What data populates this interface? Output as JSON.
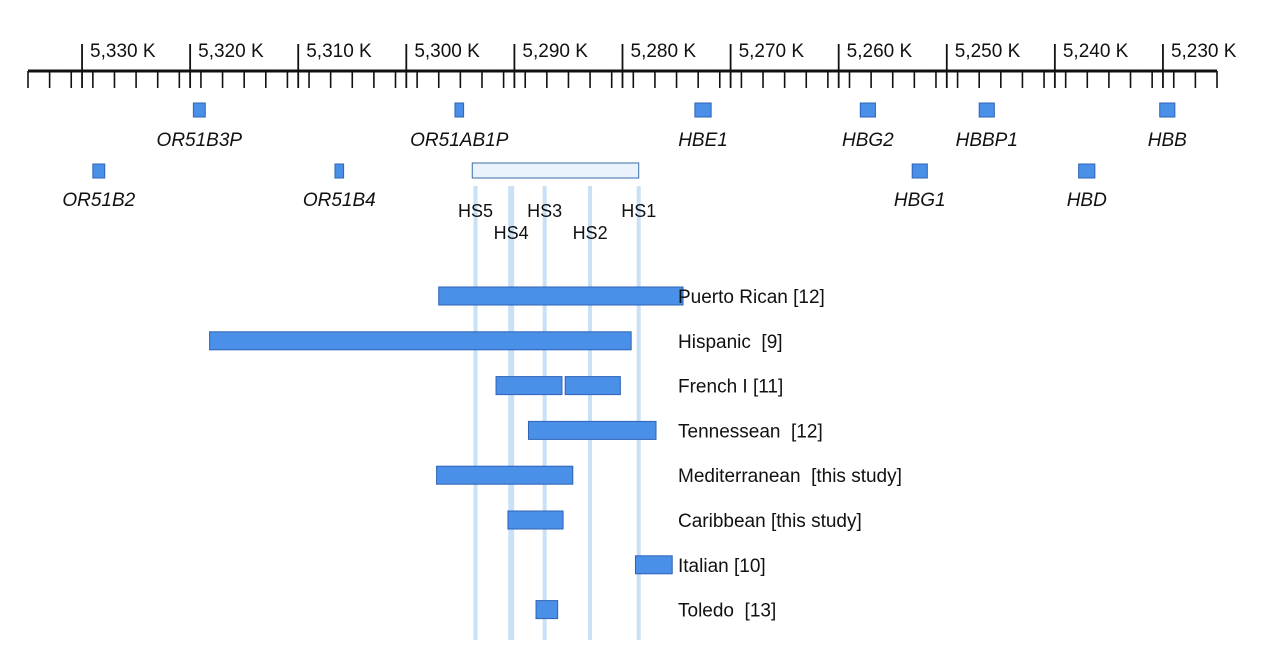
{
  "chart_data": {
    "type": "genomic-map",
    "axis": {
      "unit": "K",
      "range_kb": [
        5335,
        5225
      ],
      "major_ticks": [
        {
          "kb": 5330,
          "label": "5,330 K"
        },
        {
          "kb": 5320,
          "label": "5,320 K"
        },
        {
          "kb": 5310,
          "label": "5,310 K"
        },
        {
          "kb": 5300,
          "label": "5,300 K"
        },
        {
          "kb": 5290,
          "label": "5,290 K"
        },
        {
          "kb": 5280,
          "label": "5,280 K"
        },
        {
          "kb": 5270,
          "label": "5,270 K"
        },
        {
          "kb": 5260,
          "label": "5,260 K"
        },
        {
          "kb": 5250,
          "label": "5,250 K"
        },
        {
          "kb": 5240,
          "label": "5,240 K"
        },
        {
          "kb": 5230,
          "label": "5,230 K"
        }
      ],
      "minor_tick_step_kb": 2
    },
    "genes": [
      {
        "name": "OR51B3P",
        "start_kb": 5319.7,
        "end_kb": 5318.6,
        "row": 1
      },
      {
        "name": "OR51AB1P",
        "start_kb": 5295.5,
        "end_kb": 5294.7,
        "row": 1
      },
      {
        "name": "HBE1",
        "start_kb": 5273.3,
        "end_kb": 5271.8,
        "row": 1
      },
      {
        "name": "HBG2",
        "start_kb": 5258.0,
        "end_kb": 5256.6,
        "row": 1
      },
      {
        "name": "HBBP1",
        "start_kb": 5247.0,
        "end_kb": 5245.6,
        "row": 1
      },
      {
        "name": "HBB",
        "start_kb": 5230.3,
        "end_kb": 5228.9,
        "row": 1
      },
      {
        "name": "OR51B2",
        "start_kb": 5329.0,
        "end_kb": 5327.9,
        "row": 2
      },
      {
        "name": "OR51B4",
        "start_kb": 5306.6,
        "end_kb": 5305.8,
        "row": 2
      },
      {
        "name": "HBG1",
        "start_kb": 5253.2,
        "end_kb": 5251.8,
        "row": 2
      },
      {
        "name": "HBD",
        "start_kb": 5237.8,
        "end_kb": 5236.3,
        "row": 2
      }
    ],
    "lcr": {
      "start_kb": 5293.9,
      "end_kb": 5278.5
    },
    "hypersensitive_sites": [
      {
        "name": "HS5",
        "kb": 5293.6
      },
      {
        "name": "HS4",
        "kb": 5290.3
      },
      {
        "name": "HS3",
        "kb": 5287.2
      },
      {
        "name": "HS2",
        "kb": 5283.0
      },
      {
        "name": "HS1",
        "kb": 5278.5
      }
    ],
    "deletions": [
      {
        "label": "Puerto Rican [12]",
        "segments": [
          [
            5297.0,
            5274.4
          ]
        ]
      },
      {
        "label": "Hispanic  [9]",
        "segments": [
          [
            5318.2,
            5279.2
          ]
        ]
      },
      {
        "label": "French I [11]",
        "segments": [
          [
            5291.7,
            5285.6
          ],
          [
            5285.3,
            5280.2
          ]
        ]
      },
      {
        "label": "Tennessean  [12]",
        "segments": [
          [
            5288.7,
            5276.9
          ]
        ]
      },
      {
        "label": "Mediterranean  [this study]",
        "segments": [
          [
            5297.2,
            5284.6
          ]
        ]
      },
      {
        "label": "Caribbean [this study]",
        "segments": [
          [
            5290.6,
            5285.5
          ]
        ]
      },
      {
        "label": "Italian [10]",
        "segments": [
          [
            5278.8,
            5275.4
          ]
        ]
      },
      {
        "label": "Toledo  [13]",
        "segments": [
          [
            5288.0,
            5286.0
          ]
        ]
      }
    ],
    "colors": {
      "bar_fill": "#4a8fe8",
      "bar_stroke": "#2d63b6",
      "hs_line": "#c9e1f6",
      "lcr_fill": "#eaf3fb",
      "lcr_stroke": "#3a6ea5",
      "axis": "#111111"
    }
  }
}
